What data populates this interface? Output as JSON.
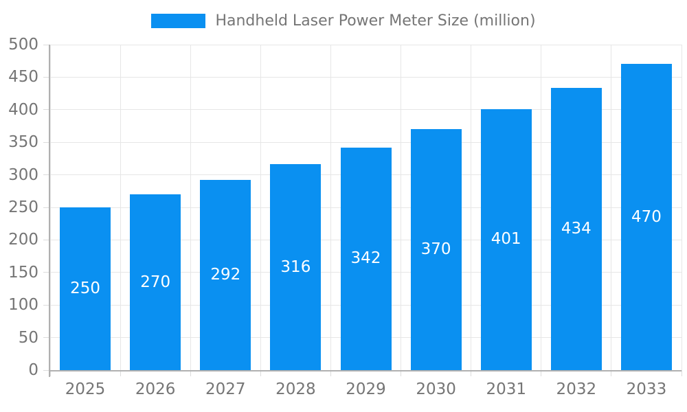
{
  "legend": {
    "label": "Handheld Laser Power Meter Size (million)",
    "position": "top"
  },
  "colors": {
    "bar": "#0a90f1",
    "bar_label": "#ffffff",
    "legend_text": "#757575",
    "axis_text": "#757575",
    "grid": "#e6e6e6",
    "tick": "#dcdcdc",
    "axis_line": "#b0b0b0",
    "background": "#ffffff"
  },
  "chart_data": {
    "type": "bar",
    "title": "Handheld Laser Power Meter Size (million)",
    "series_name": "Handheld Laser Power Meter Size (million)",
    "categories": [
      "2025",
      "2026",
      "2027",
      "2028",
      "2029",
      "2030",
      "2031",
      "2032",
      "2033"
    ],
    "values": [
      250,
      270,
      292,
      316,
      342,
      370,
      401,
      434,
      470
    ],
    "xlabel": "",
    "ylabel": "",
    "ylim": [
      0,
      500
    ],
    "yticks": [
      0,
      50,
      100,
      150,
      200,
      250,
      300,
      350,
      400,
      450,
      500
    ],
    "grid": true,
    "legend_position": "top",
    "value_labels": "inside-center"
  }
}
